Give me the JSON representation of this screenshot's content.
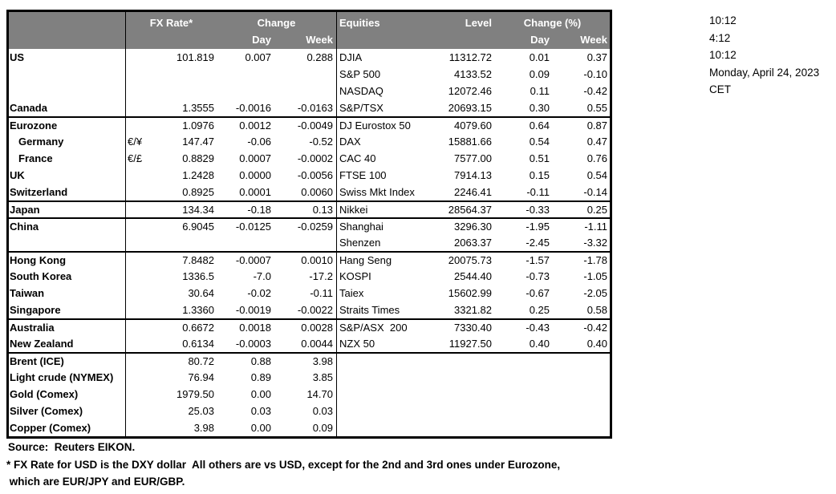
{
  "colors": {
    "header_bg": "#808080",
    "header_text": "#FFFFFF",
    "border": "#000000",
    "text": "#000000",
    "background": "#FFFFFF"
  },
  "timestamps": {
    "lines": [
      "10:12",
      "4:12",
      "10:12",
      "Monday, April 24, 2023",
      "CET"
    ]
  },
  "footer": {
    "source": "Source:  Reuters EIKON.",
    "footnote1": "* FX Rate for USD is the DXY dollar  All others are vs USD, except for the 2nd and 3rd ones under Eurozone,",
    "footnote2": " which are EUR/JPY and EUR/GBP."
  },
  "chart_data": {
    "type": "table",
    "header": {
      "fx_title": "FX Rate*",
      "fx_change": "Change",
      "fx_day": "Day",
      "fx_week": "Week",
      "eq_title": "Equities",
      "eq_level": "Level",
      "eq_change": "Change (%)",
      "eq_day": "Day",
      "eq_week": "Week"
    },
    "rows": [
      {
        "name": "US",
        "sym": "",
        "fx": "101.819",
        "fx_day": "0.007",
        "fx_week": "0.288",
        "eq": "DJIA",
        "level": "11312.72",
        "eq_day": "0.01",
        "eq_week": "0.37",
        "row_class": "",
        "name_class": ""
      },
      {
        "name": "",
        "sym": "",
        "fx": "",
        "fx_day": "",
        "fx_week": "",
        "eq": "S&P 500",
        "level": "4133.52",
        "eq_day": "0.09",
        "eq_week": "-0.10",
        "row_class": "",
        "name_class": ""
      },
      {
        "name": "",
        "sym": "",
        "fx": "",
        "fx_day": "",
        "fx_week": "",
        "eq": "NASDAQ",
        "level": "12072.46",
        "eq_day": "0.11",
        "eq_week": "-0.42",
        "row_class": "",
        "name_class": ""
      },
      {
        "name": "Canada",
        "sym": "",
        "fx": "1.3555",
        "fx_day": "-0.0016",
        "fx_week": "-0.0163",
        "eq": "S&P/TSX",
        "level": "20693.15",
        "eq_day": "0.30",
        "eq_week": "0.55",
        "row_class": "",
        "name_class": ""
      },
      {
        "name": "Eurozone",
        "sym": "",
        "fx": "1.0976",
        "fx_day": "0.0012",
        "fx_week": "-0.0049",
        "eq": "DJ Eurostox 50",
        "level": "4079.60",
        "eq_day": "0.64",
        "eq_week": "0.87",
        "row_class": "sec",
        "name_class": ""
      },
      {
        "name": "Germany",
        "sym": "€/¥",
        "fx": "147.47",
        "fx_day": "-0.06",
        "fx_week": "-0.52",
        "eq": "DAX",
        "level": "15881.66",
        "eq_day": "0.54",
        "eq_week": "0.47",
        "row_class": "",
        "name_class": "indent"
      },
      {
        "name": "France",
        "sym": "€/£",
        "fx": "0.8829",
        "fx_day": "0.0007",
        "fx_week": "-0.0002",
        "eq": "CAC 40",
        "level": "7577.00",
        "eq_day": "0.51",
        "eq_week": "0.76",
        "row_class": "",
        "name_class": "indent"
      },
      {
        "name": "UK",
        "sym": "",
        "fx": "1.2428",
        "fx_day": "0.0000",
        "fx_week": "-0.0056",
        "eq": "FTSE 100",
        "level": "7914.13",
        "eq_day": "0.15",
        "eq_week": "0.54",
        "row_class": "",
        "name_class": ""
      },
      {
        "name": "Switzerland",
        "sym": "",
        "fx": "0.8925",
        "fx_day": "0.0001",
        "fx_week": "0.0060",
        "eq": "Swiss Mkt Index",
        "level": "2246.41",
        "eq_day": "-0.11",
        "eq_week": "-0.14",
        "row_class": "",
        "name_class": ""
      },
      {
        "name": "Japan",
        "sym": "",
        "fx": "134.34",
        "fx_day": "-0.18",
        "fx_week": "0.13",
        "eq": "Nikkei",
        "level": "28564.37",
        "eq_day": "-0.33",
        "eq_week": "0.25",
        "row_class": "sec",
        "name_class": ""
      },
      {
        "name": "China",
        "sym": "",
        "fx": "6.9045",
        "fx_day": "-0.0125",
        "fx_week": "-0.0259",
        "eq": "Shanghai",
        "level": "3296.30",
        "eq_day": "-1.95",
        "eq_week": "-1.11",
        "row_class": "sec",
        "name_class": ""
      },
      {
        "name": "",
        "sym": "",
        "fx": "",
        "fx_day": "",
        "fx_week": "",
        "eq": "Shenzen",
        "level": "2063.37",
        "eq_day": "-2.45",
        "eq_week": "-3.32",
        "row_class": "",
        "name_class": ""
      },
      {
        "name": "Hong Kong",
        "sym": "",
        "fx": "7.8482",
        "fx_day": "-0.0007",
        "fx_week": "0.0010",
        "eq": "Hang Seng",
        "level": "20075.73",
        "eq_day": "-1.57",
        "eq_week": "-1.78",
        "row_class": "sec",
        "name_class": ""
      },
      {
        "name": "South Korea",
        "sym": "",
        "fx": "1336.5",
        "fx_day": "-7.0",
        "fx_week": "-17.2",
        "eq": "KOSPI",
        "level": "2544.40",
        "eq_day": "-0.73",
        "eq_week": "-1.05",
        "row_class": "",
        "name_class": ""
      },
      {
        "name": "Taiwan",
        "sym": "",
        "fx": "30.64",
        "fx_day": "-0.02",
        "fx_week": "-0.11",
        "eq": "Taiex",
        "level": "15602.99",
        "eq_day": "-0.67",
        "eq_week": "-2.05",
        "row_class": "",
        "name_class": ""
      },
      {
        "name": "Singapore",
        "sym": "",
        "fx": "1.3360",
        "fx_day": "-0.0019",
        "fx_week": "-0.0022",
        "eq": "Straits Times",
        "level": "3321.82",
        "eq_day": "0.25",
        "eq_week": "0.58",
        "row_class": "",
        "name_class": ""
      },
      {
        "name": "Australia",
        "sym": "",
        "fx": "0.6672",
        "fx_day": "0.0018",
        "fx_week": "0.0028",
        "eq": "S&P/ASX  200",
        "level": "7330.40",
        "eq_day": "-0.43",
        "eq_week": "-0.42",
        "row_class": "sec",
        "name_class": ""
      },
      {
        "name": "New Zealand",
        "sym": "",
        "fx": "0.6134",
        "fx_day": "-0.0003",
        "fx_week": "0.0044",
        "eq": "NZX 50",
        "level": "11927.50",
        "eq_day": "0.40",
        "eq_week": "0.40",
        "row_class": "",
        "name_class": ""
      },
      {
        "name": "Brent (ICE)",
        "sym": "",
        "fx": "80.72",
        "fx_day": "0.88",
        "fx_week": "3.98",
        "eq": "",
        "level": "",
        "eq_day": "",
        "eq_week": "",
        "row_class": "sec",
        "name_class": ""
      },
      {
        "name": "Light crude (NYMEX)",
        "sym": "",
        "fx": "76.94",
        "fx_day": "0.89",
        "fx_week": "3.85",
        "eq": "",
        "level": "",
        "eq_day": "",
        "eq_week": "",
        "row_class": "",
        "name_class": ""
      },
      {
        "name": "Gold (Comex)",
        "sym": "",
        "fx": "1979.50",
        "fx_day": "0.00",
        "fx_week": "14.70",
        "eq": "",
        "level": "",
        "eq_day": "",
        "eq_week": "",
        "row_class": "",
        "name_class": ""
      },
      {
        "name": "Silver (Comex)",
        "sym": "",
        "fx": "25.03",
        "fx_day": "0.03",
        "fx_week": "0.03",
        "eq": "",
        "level": "",
        "eq_day": "",
        "eq_week": "",
        "row_class": "",
        "name_class": ""
      },
      {
        "name": "Copper (Comex)",
        "sym": "",
        "fx": "3.98",
        "fx_day": "0.00",
        "fx_week": "0.09",
        "eq": "",
        "level": "",
        "eq_day": "",
        "eq_week": "",
        "row_class": "",
        "name_class": ""
      }
    ]
  }
}
